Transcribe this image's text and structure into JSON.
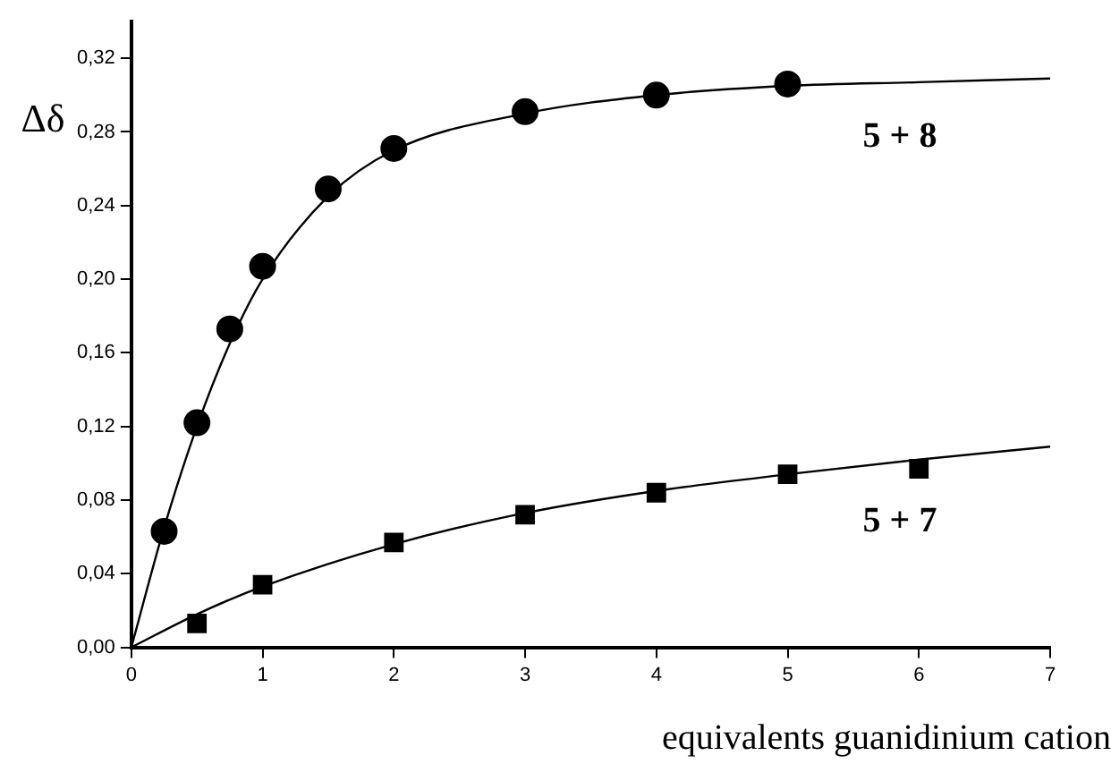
{
  "chart_data": {
    "type": "scatter",
    "xlabel": "equivalents guanidinium cation",
    "ylabel": "Δδ",
    "xlim": [
      0,
      7
    ],
    "xticks": [
      0,
      1,
      2,
      3,
      4,
      5,
      6,
      7
    ],
    "ylim": [
      0,
      0.34
    ],
    "yticks": [
      {
        "value": 0,
        "label": "0,00"
      },
      {
        "value": 0.04,
        "label": "0,04"
      },
      {
        "value": 0.08,
        "label": "0,08"
      },
      {
        "value": 0.12,
        "label": "0,12"
      },
      {
        "value": 0.16,
        "label": "0,16"
      },
      {
        "value": 0.2,
        "label": "0,20"
      },
      {
        "value": 0.24,
        "label": "0,24"
      },
      {
        "value": 0.28,
        "label": "0,28"
      },
      {
        "value": 0.32,
        "label": "0,32"
      }
    ],
    "grid": false,
    "legend": false,
    "series": [
      {
        "name": "5 + 8",
        "marker": "circle",
        "color": "#000000",
        "x": [
          0.25,
          0.5,
          0.75,
          1,
          1.5,
          2,
          3,
          4,
          5
        ],
        "values": [
          0.063,
          0.122,
          0.173,
          0.207,
          0.249,
          0.271,
          0.291,
          0.3,
          0.306
        ]
      },
      {
        "name": "5 + 7",
        "marker": "square",
        "color": "#000000",
        "x": [
          0.5,
          1,
          2,
          3,
          4,
          5,
          6
        ],
        "values": [
          0.013,
          0.034,
          0.057,
          0.072,
          0.084,
          0.094,
          0.097
        ]
      },
      {
        "type": "line",
        "marker": "none",
        "color": "#000000",
        "x": [
          0,
          0.25,
          0.5,
          0.75,
          1,
          1.5,
          2,
          3,
          4,
          5,
          6,
          7
        ],
        "values": [
          0,
          0.065,
          0.12,
          0.165,
          0.2,
          0.245,
          0.27,
          0.29,
          0.3,
          0.305,
          0.307,
          0.309
        ]
      },
      {
        "type": "line",
        "marker": "none",
        "color": "#000000",
        "x": [
          0,
          0.5,
          1,
          2,
          3,
          4,
          5,
          6,
          7
        ],
        "values": [
          0,
          0.018,
          0.033,
          0.056,
          0.073,
          0.085,
          0.094,
          0.102,
          0.109
        ]
      }
    ]
  }
}
